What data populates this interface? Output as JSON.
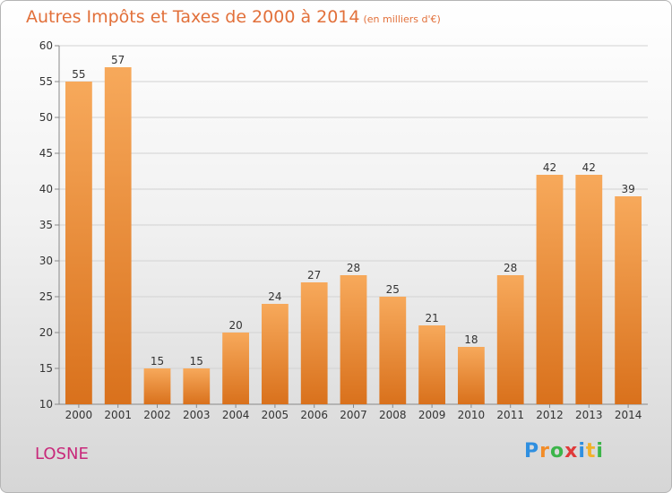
{
  "header": {
    "title": "Autres Impôts et Taxes de 2000 à 2014",
    "subtitle": "(en milliers d'€)"
  },
  "place": "LOSNE",
  "logo": {
    "text": "Proxiti",
    "letters": [
      "P",
      "r",
      "o",
      "x",
      "i",
      "t",
      "i"
    ],
    "colors": [
      "#2f8fe0",
      "#f28c28",
      "#3cb54a",
      "#e03a3a",
      "#2f8fe0",
      "#f2b12a",
      "#3cb54a"
    ]
  },
  "colors": {
    "bar_top": "#f7a95b",
    "bar_bottom": "#d9711c",
    "title": "#e2703a",
    "place": "#c8287a",
    "text": "#333333"
  },
  "chart_data": {
    "type": "bar",
    "title": "Autres Impôts et Taxes de 2000 à 2014",
    "subtitle": "(en milliers d'€)",
    "categories": [
      "2000",
      "2001",
      "2002",
      "2003",
      "2004",
      "2005",
      "2006",
      "2007",
      "2008",
      "2009",
      "2010",
      "2011",
      "2012",
      "2013",
      "2014"
    ],
    "values": [
      55,
      57,
      15,
      15,
      20,
      24,
      27,
      28,
      25,
      21,
      18,
      28,
      42,
      42,
      39
    ],
    "ylim": [
      10,
      60
    ],
    "yticks": [
      10,
      15,
      20,
      25,
      30,
      35,
      40,
      45,
      50,
      55,
      60
    ],
    "grid": true,
    "data_labels": true
  }
}
